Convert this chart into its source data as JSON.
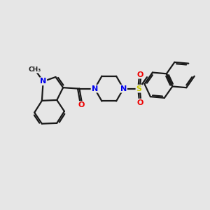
{
  "background_color": "#e6e6e6",
  "bond_color": "#1a1a1a",
  "bond_width": 1.6,
  "n_color": "#0000ee",
  "o_color": "#ee0000",
  "s_color": "#cccc00",
  "text_fontsize": 8.0,
  "figsize": [
    3.0,
    3.0
  ],
  "dpi": 100,
  "xlim": [
    0,
    10
  ],
  "ylim": [
    1,
    9
  ]
}
